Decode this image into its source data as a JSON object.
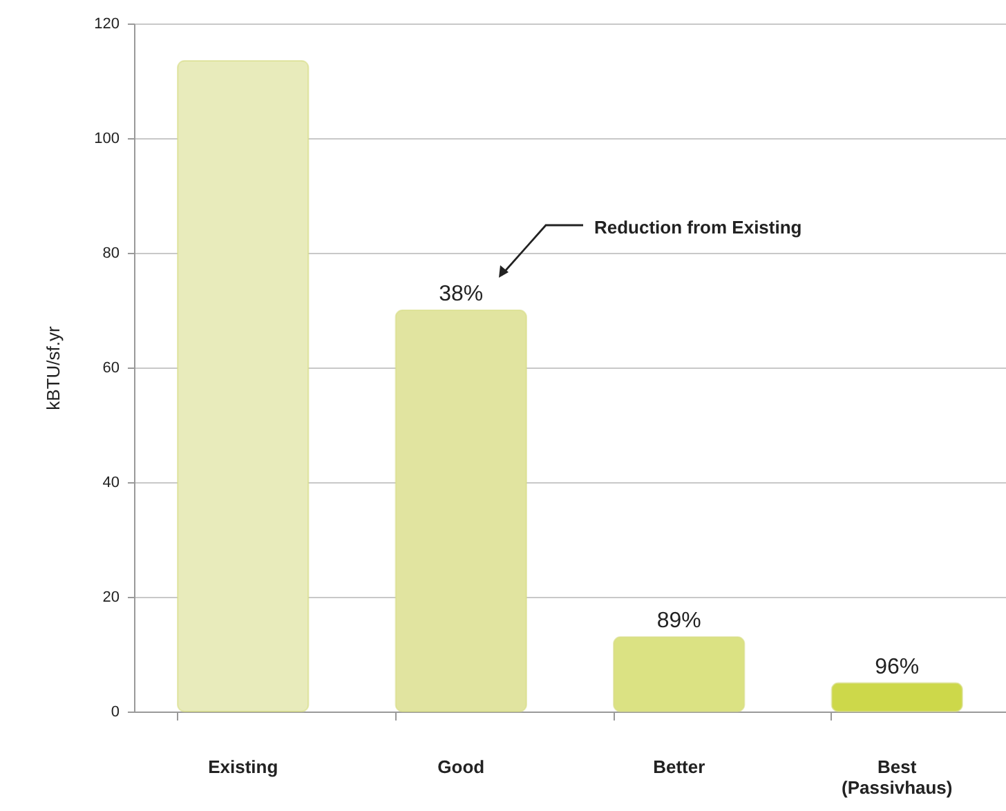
{
  "chart_data": {
    "type": "bar",
    "ylabel": "kBTU/sf.yr",
    "categories": [
      "Existing",
      "Good",
      "Better",
      "Best (Passivhaus)"
    ],
    "values": [
      113.5,
      70,
      13,
      5
    ],
    "colors": [
      "#e8ebbb",
      "#e1e4a0",
      "#dbe283",
      "#cdd84a"
    ],
    "annotations": [
      "Reduction from Existing",
      {
        "text": "38%",
        "x": "Good",
        "y": 70
      },
      {
        "text": "89%",
        "x": "Better",
        "y": 13
      },
      {
        "text": "96%",
        "x": "Best (Passivhaus)",
        "y": 5
      }
    ],
    "ylim": [
      0,
      120
    ],
    "yticks": [
      0,
      20,
      40,
      60,
      80,
      100,
      120
    ],
    "grid": "y"
  }
}
